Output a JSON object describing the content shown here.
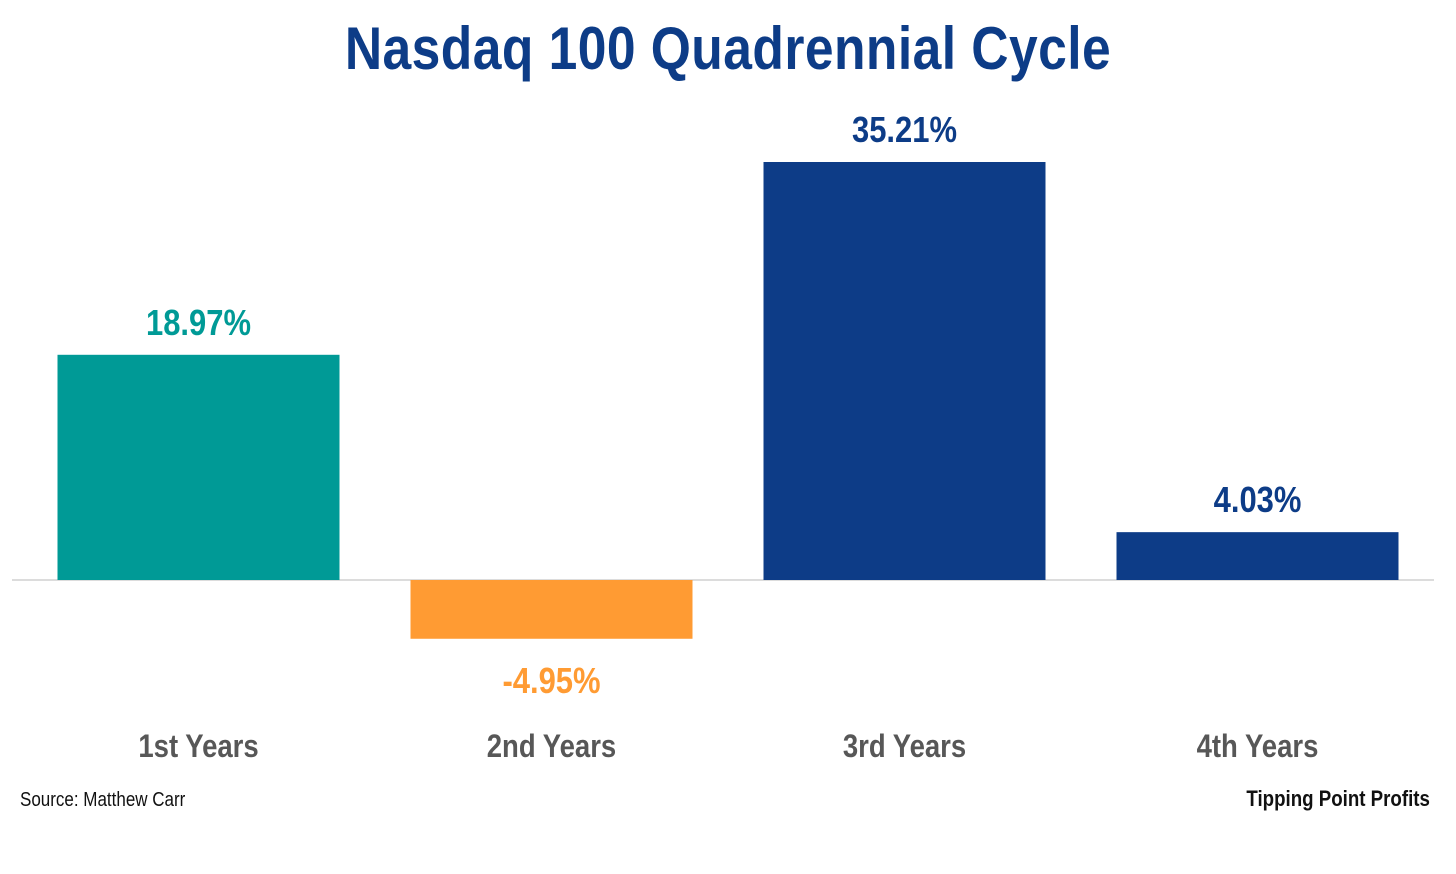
{
  "chart_data": {
    "type": "bar",
    "title": "Nasdaq 100 Quadrennial Cycle",
    "categories": [
      "1st Years",
      "2nd Years",
      "3rd Years",
      "4th Years"
    ],
    "values": [
      18.97,
      -4.95,
      35.21,
      4.03
    ],
    "value_labels": [
      "18.97%",
      "-4.95%",
      "35.21%",
      "4.03%"
    ],
    "bar_colors": [
      "#009a96",
      "#ff9b33",
      "#0d3c87",
      "#0d3c87"
    ],
    "ylim": [
      -9,
      38
    ],
    "grid": false,
    "legend": "none",
    "xlabel": "",
    "ylabel": ""
  },
  "colors": {
    "title": "#0d3c87",
    "tick_label": "#575757",
    "baseline": "#d0d0d0"
  },
  "footer": {
    "source": "Source: Matthew Carr",
    "brand": "Tipping Point Profits"
  }
}
